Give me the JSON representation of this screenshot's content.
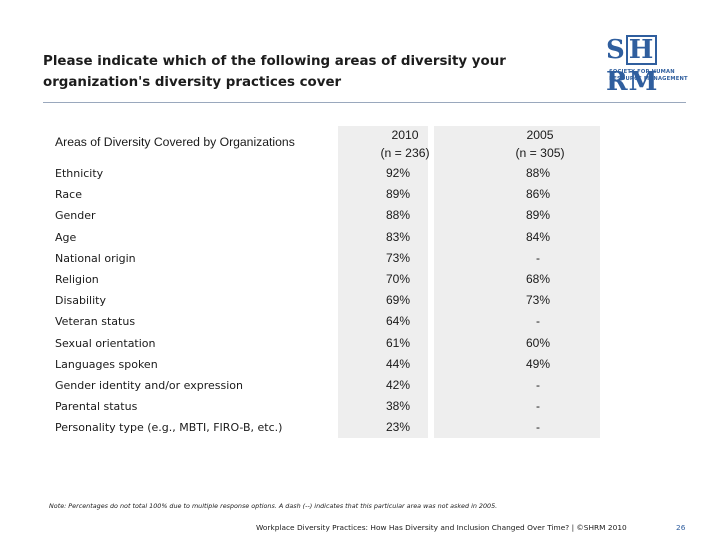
{
  "title": "Please indicate which of the following areas of diversity your organization's diversity practices cover",
  "logo": {
    "letters_a": "S",
    "letters_b": "H",
    "letters_c": "RM",
    "tagline_1": "SOCIETY FOR HUMAN",
    "tagline_2": "RESOURCE MANAGEMENT"
  },
  "table": {
    "header_label": "Areas of Diversity Covered by Organizations",
    "col1_year": "2010",
    "col1_n": "(n = 236)",
    "col2_year": "2005",
    "col2_n": "(n = 305)",
    "rows": [
      {
        "label": "Ethnicity",
        "v2010": "92%",
        "v2005": "88%"
      },
      {
        "label": "Race",
        "v2010": "89%",
        "v2005": "86%"
      },
      {
        "label": "Gender",
        "v2010": "88%",
        "v2005": "89%"
      },
      {
        "label": "Age",
        "v2010": "83%",
        "v2005": "84%"
      },
      {
        "label": "National origin",
        "v2010": "73%",
        "v2005": "-"
      },
      {
        "label": "Religion",
        "v2010": "70%",
        "v2005": "68%"
      },
      {
        "label": "Disability",
        "v2010": "69%",
        "v2005": "73%"
      },
      {
        "label": "Veteran status",
        "v2010": "64%",
        "v2005": "-"
      },
      {
        "label": "Sexual orientation",
        "v2010": "61%",
        "v2005": "60%"
      },
      {
        "label": "Languages spoken",
        "v2010": "44%",
        "v2005": "49%"
      },
      {
        "label": "Gender identity and/or expression",
        "v2010": "42%",
        "v2005": "-"
      },
      {
        "label": "Parental status",
        "v2010": "38%",
        "v2005": "-"
      },
      {
        "label": "Personality type (e.g., MBTI, FIRO-B, etc.)",
        "v2010": "23%",
        "v2005": "-"
      }
    ]
  },
  "note": "Note: Percentages do not total 100% due to multiple response options. A dash (--) indicates that this particular area was not asked in 2005.",
  "footer": "Workplace Diversity Practices: How Has Diversity and Inclusion Changed Over Time? | ©SHRM 2010",
  "page_number": "26",
  "colors": {
    "accent": "#2f5e9e",
    "column_bg": "#eeeeee"
  }
}
